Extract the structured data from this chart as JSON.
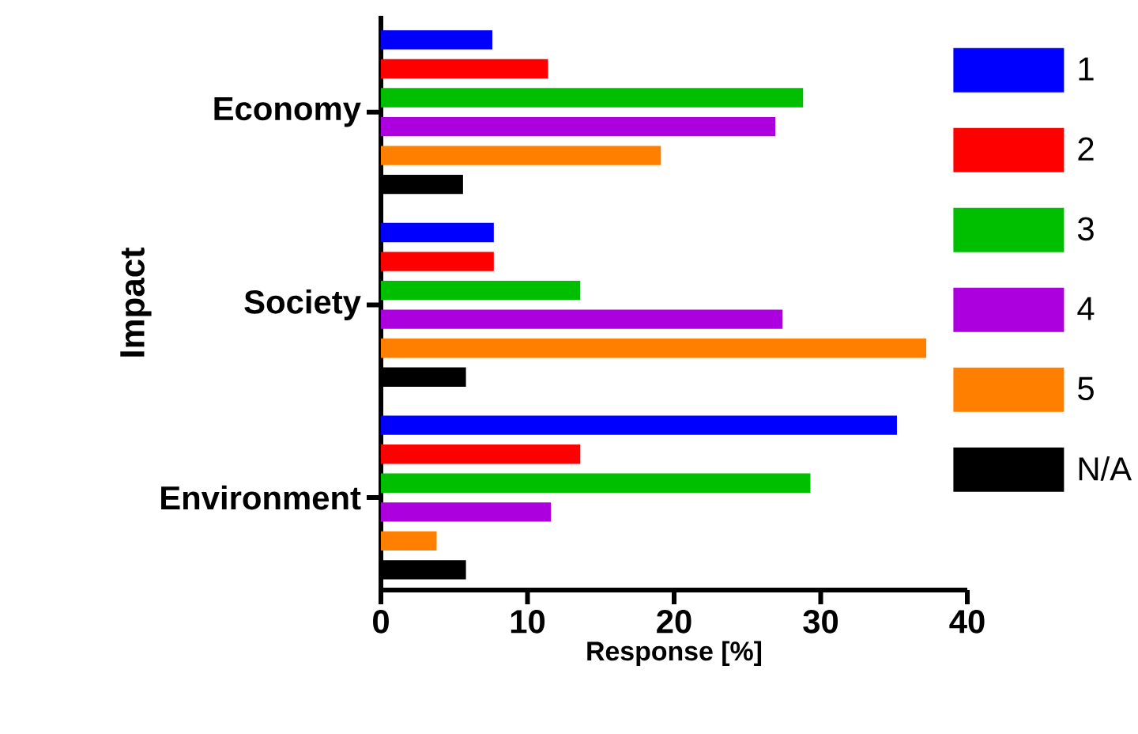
{
  "chart_data": {
    "type": "bar",
    "orientation": "horizontal",
    "xlabel": "Response [%]",
    "ylabel": "Impact",
    "categories": [
      "Economy",
      "Society",
      "Environment"
    ],
    "series": [
      {
        "name": "1",
        "color": "#0000ff",
        "values": [
          7.6,
          7.7,
          35.2
        ]
      },
      {
        "name": "2",
        "color": "#ff0000",
        "values": [
          11.4,
          7.7,
          13.6
        ]
      },
      {
        "name": "3",
        "color": "#00bf00",
        "values": [
          28.8,
          13.6,
          29.3
        ]
      },
      {
        "name": "4",
        "color": "#ad00df",
        "values": [
          26.9,
          27.4,
          11.6
        ]
      },
      {
        "name": "5",
        "color": "#ff8000",
        "values": [
          19.1,
          37.2,
          3.8
        ]
      },
      {
        "name": "N/A",
        "color": "#000000",
        "values": [
          5.6,
          5.8,
          5.8
        ]
      }
    ],
    "xlim": [
      0,
      40
    ],
    "xticks": [
      0,
      10,
      20,
      30,
      40
    ],
    "legend": "right"
  }
}
